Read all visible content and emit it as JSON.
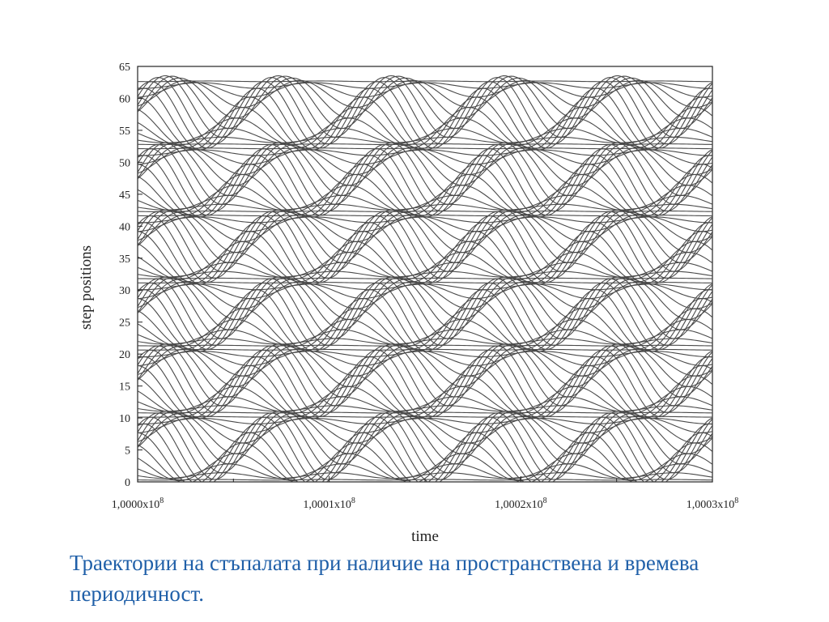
{
  "chart_data": {
    "type": "line",
    "xlabel": "time",
    "ylabel": "step positions",
    "xlim": [
      100000000,
      100030000
    ],
    "ylim": [
      0,
      65
    ],
    "y_ticks": [
      0,
      5,
      10,
      15,
      20,
      25,
      30,
      35,
      40,
      45,
      50,
      55,
      60,
      65
    ],
    "x_ticks": [
      {
        "value": 100000000,
        "mantissa": "1,0000x10",
        "exponent": "8"
      },
      {
        "value": 100010000,
        "mantissa": "1,0001x10",
        "exponent": "8"
      },
      {
        "value": 100020000,
        "mantissa": "1,0002x10",
        "exponent": "8"
      },
      {
        "value": 100030000,
        "mantissa": "1,0003x10",
        "exponent": "8"
      }
    ],
    "spatial_period": 10.5,
    "temporal_period": 5900,
    "bands": 6,
    "lines_per_band": 16,
    "grid": false,
    "line_color": "#4a4a4a"
  },
  "caption": "Траектории на стъпалата при наличие на пространствена и времева периодичност."
}
